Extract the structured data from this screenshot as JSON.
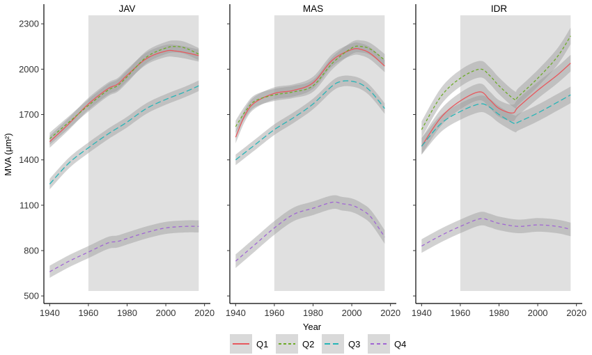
{
  "chart_data": {
    "type": "line",
    "xlabel": "Year",
    "ylabel": "MVA (μm²)",
    "xlim": [
      1937,
      2023
    ],
    "ylim": [
      450,
      2430
    ],
    "x_ticks": [
      1940,
      1960,
      1980,
      2000,
      2020
    ],
    "y_ticks": [
      500,
      800,
      1100,
      1400,
      1700,
      2000,
      2300
    ],
    "x_tick_labels": [
      "1940",
      "1960",
      "1980",
      "2000",
      "2020"
    ],
    "y_tick_labels": [
      "500",
      "800",
      "1100",
      "1400",
      "1700",
      "2000",
      "2300"
    ],
    "shaded_period": [
      1960,
      2017
    ],
    "legend_position": "bottom",
    "series_styles": [
      {
        "name": "Q1",
        "color": "#E7585D",
        "dash": "none"
      },
      {
        "name": "Q2",
        "color": "#6DAB28",
        "dash": "4,3"
      },
      {
        "name": "Q3",
        "color": "#26B5B7",
        "dash": "8,4"
      },
      {
        "name": "Q4",
        "color": "#A066D3",
        "dash": "5,4"
      }
    ],
    "panels": [
      {
        "label": "JAV",
        "series": [
          {
            "name": "Q1",
            "x": [
              1940,
              1950,
              1960,
              1970,
              1975,
              1980,
              1990,
              2000,
              2005,
              2010,
              2017
            ],
            "y": [
              1520,
              1640,
              1770,
              1870,
              1900,
              1960,
              2070,
              2120,
              2120,
              2110,
              2090
            ],
            "band": 40
          },
          {
            "name": "Q2",
            "x": [
              1940,
              1950,
              1960,
              1970,
              1975,
              1980,
              1990,
              2000,
              2005,
              2010,
              2017
            ],
            "y": [
              1540,
              1650,
              1760,
              1860,
              1890,
              1950,
              2080,
              2140,
              2150,
              2140,
              2100
            ],
            "band": 40
          },
          {
            "name": "Q3",
            "x": [
              1940,
              1950,
              1960,
              1970,
              1975,
              1980,
              1990,
              2000,
              2010,
              2017
            ],
            "y": [
              1240,
              1380,
              1480,
              1570,
              1610,
              1650,
              1740,
              1800,
              1850,
              1890
            ],
            "band": 35
          },
          {
            "name": "Q4",
            "x": [
              1940,
              1950,
              1960,
              1970,
              1975,
              1980,
              1990,
              2000,
              2010,
              2017
            ],
            "y": [
              660,
              730,
              790,
              850,
              860,
              880,
              920,
              950,
              960,
              960
            ],
            "band": 40
          }
        ]
      },
      {
        "label": "MAS",
        "series": [
          {
            "name": "Q1",
            "x": [
              1940,
              1945,
              1950,
              1960,
              1970,
              1980,
              1990,
              2000,
              2005,
              2010,
              2017
            ],
            "y": [
              1550,
              1700,
              1780,
              1840,
              1860,
              1910,
              2060,
              2130,
              2130,
              2100,
              2020
            ],
            "band": 40
          },
          {
            "name": "Q2",
            "x": [
              1940,
              1945,
              1950,
              1960,
              1970,
              1980,
              1990,
              2000,
              2005,
              2010,
              2017
            ],
            "y": [
              1620,
              1720,
              1790,
              1830,
              1850,
              1890,
              2040,
              2140,
              2150,
              2130,
              2060
            ],
            "band": 40
          },
          {
            "name": "Q3",
            "x": [
              1940,
              1950,
              1960,
              1970,
              1980,
              1990,
              1995,
              2000,
              2005,
              2010,
              2017
            ],
            "y": [
              1400,
              1500,
              1600,
              1680,
              1770,
              1890,
              1920,
              1920,
              1900,
              1850,
              1740
            ],
            "band": 35
          },
          {
            "name": "Q4",
            "x": [
              1940,
              1950,
              1960,
              1970,
              1980,
              1990,
              1995,
              2000,
              2005,
              2010,
              2017
            ],
            "y": [
              730,
              840,
              950,
              1040,
              1080,
              1120,
              1110,
              1100,
              1070,
              1020,
              890
            ],
            "band": 45
          }
        ]
      },
      {
        "label": "IDR",
        "series": [
          {
            "name": "Q1",
            "x": [
              1940,
              1950,
              1960,
              1970,
              1975,
              1980,
              1987,
              1990,
              2000,
              2010,
              2017
            ],
            "y": [
              1490,
              1680,
              1790,
              1850,
              1800,
              1740,
              1710,
              1750,
              1860,
              1960,
              2040
            ],
            "band": 55
          },
          {
            "name": "Q2",
            "x": [
              1940,
              1950,
              1960,
              1970,
              1975,
              1980,
              1988,
              1990,
              2000,
              2010,
              2017
            ],
            "y": [
              1600,
              1820,
              1940,
              2000,
              1960,
              1890,
              1800,
              1820,
              1940,
              2080,
              2220
            ],
            "band": 55
          },
          {
            "name": "Q3",
            "x": [
              1940,
              1950,
              1960,
              1970,
              1975,
              1980,
              1988,
              1990,
              2000,
              2010,
              2017
            ],
            "y": [
              1490,
              1640,
              1720,
              1770,
              1750,
              1700,
              1640,
              1650,
              1710,
              1780,
              1830
            ],
            "band": 55
          },
          {
            "name": "Q4",
            "x": [
              1940,
              1950,
              1960,
              1970,
              1975,
              1980,
              1990,
              2000,
              2010,
              2017
            ],
            "y": [
              830,
              900,
              960,
              1010,
              1000,
              980,
              960,
              970,
              960,
              940
            ],
            "band": 45
          }
        ]
      }
    ]
  },
  "legend": {
    "items": [
      {
        "label": "Q1"
      },
      {
        "label": "Q2"
      },
      {
        "label": "Q3"
      },
      {
        "label": "Q4"
      }
    ]
  }
}
